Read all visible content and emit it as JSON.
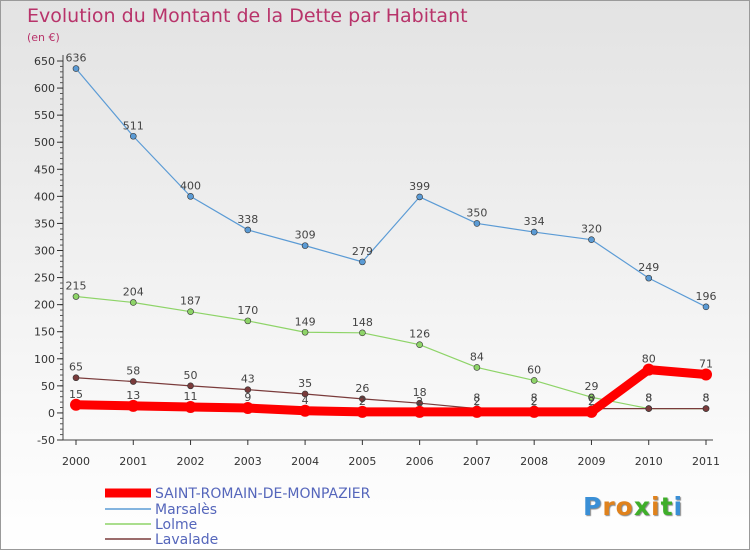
{
  "header": {
    "title": "Evolution du Montant de la Dette par Habitant",
    "subtitle": "(en €)"
  },
  "logo": {
    "text": "Proxiti",
    "colors": [
      "#3a8fd6",
      "#e0821c",
      "#e0821c",
      "#3fae2a",
      "#e0821c",
      "#3fae2a",
      "#3a8fd6"
    ]
  },
  "chart_data": {
    "type": "line",
    "title": "Evolution du Montant de la Dette par Habitant",
    "ylabel": "(en €)",
    "xlabel": "",
    "ylim": [
      -50,
      650
    ],
    "yticks": [
      -50,
      0,
      50,
      100,
      150,
      200,
      250,
      300,
      350,
      400,
      450,
      500,
      550,
      600,
      650
    ],
    "x": [
      "2000",
      "2001",
      "2002",
      "2003",
      "2004",
      "2005",
      "2006",
      "2007",
      "2008",
      "2009",
      "2010",
      "2011"
    ],
    "grid": false,
    "legend_position": "bottom-left",
    "series": [
      {
        "name": "SAINT-ROMAIN-DE-MONPAZIER",
        "color": "#ff0000",
        "emphasis": true,
        "values": [
          15,
          13,
          11,
          9,
          4,
          2,
          2,
          2,
          2,
          2,
          80,
          71
        ],
        "labels": [
          "15",
          "13",
          "11",
          "9",
          "4",
          "2",
          "2",
          "2",
          "2",
          "2",
          "80",
          "71"
        ]
      },
      {
        "name": "Marsalès",
        "color": "#5b9bd5",
        "values": [
          636,
          511,
          400,
          338,
          309,
          279,
          399,
          350,
          334,
          320,
          249,
          196
        ],
        "labels": [
          "636",
          "511",
          "400",
          "338",
          "309",
          "279",
          "399",
          "350",
          "334",
          "320",
          "249",
          "196"
        ]
      },
      {
        "name": "Lolme",
        "color": "#8ed468",
        "values": [
          215,
          204,
          187,
          170,
          149,
          148,
          126,
          84,
          60,
          29,
          8,
          8
        ],
        "labels": [
          "215",
          "204",
          "187",
          "170",
          "149",
          "148",
          "126",
          "84",
          "60",
          "29",
          "8",
          "8"
        ]
      },
      {
        "name": "Lavalade",
        "color": "#7a3b3b",
        "values": [
          65,
          58,
          50,
          43,
          35,
          26,
          18,
          8,
          8,
          8,
          8,
          8
        ],
        "labels": [
          "65",
          "58",
          "50",
          "43",
          "35",
          "26",
          "18",
          "8",
          "8",
          "8",
          "8",
          "8"
        ]
      }
    ]
  }
}
